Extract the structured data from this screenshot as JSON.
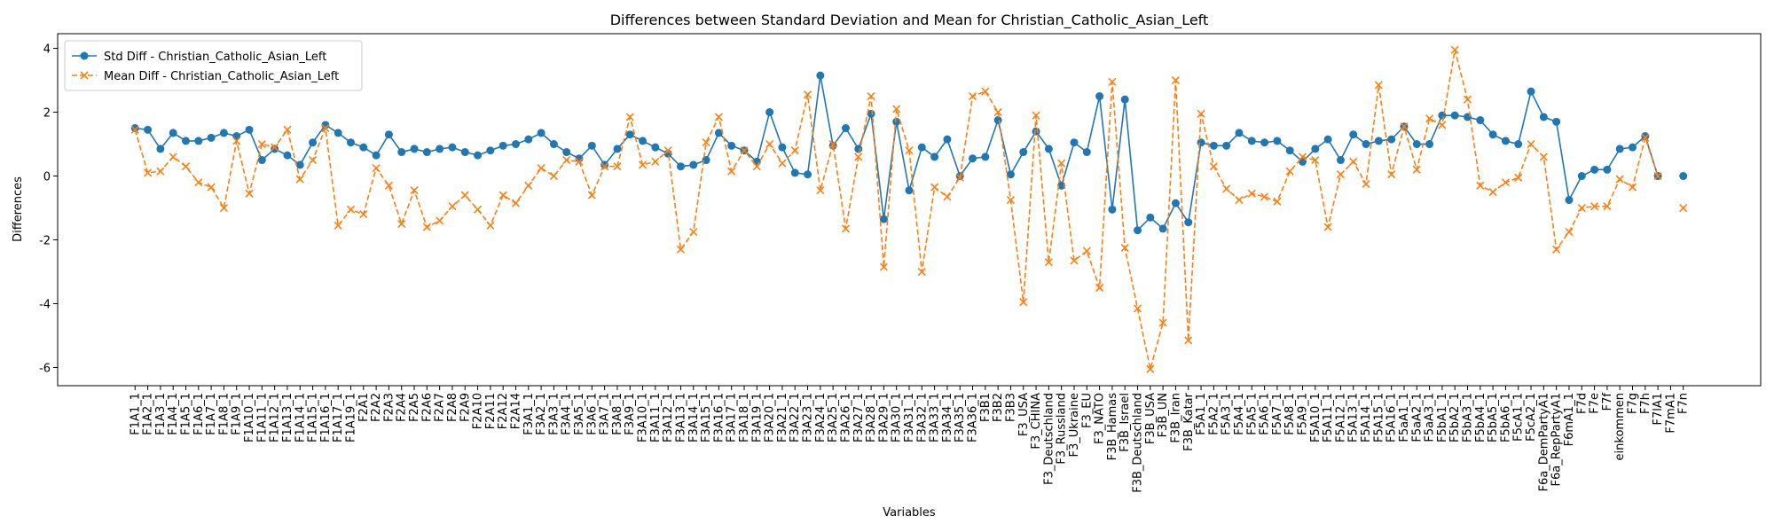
{
  "chart_data": {
    "type": "line",
    "title": "Differences between Standard Deviation and Mean for Christian_Catholic_Asian_Left",
    "x_label": "Variables",
    "y_label": "Differences",
    "categories": [
      "F1A1_1",
      "F1A2_1",
      "F1A3_1",
      "F1A4_1",
      "F1A5_1",
      "F1A6_1",
      "F1A7_1",
      "F1A8_1",
      "F1A9_1",
      "F1A10_1",
      "F1A11_1",
      "F1A12_1",
      "F1A13_1",
      "F1A14_1",
      "F1A15_1",
      "F1A16_1",
      "F1A17_1",
      "F1A19_1",
      "F2A1",
      "F2A2",
      "F2A3",
      "F2A4",
      "F2A5",
      "F2A6",
      "F2A7",
      "F2A8",
      "F2A9",
      "F2A10",
      "F2A11",
      "F2A12",
      "F2A14",
      "F3A1_1",
      "F3A2_1",
      "F3A3_1",
      "F3A4_1",
      "F3A5_1",
      "F3A6_1",
      "F3A7_1",
      "F3A8_1",
      "F3A9_1",
      "F3A10_1",
      "F3A11_1",
      "F3A12_1",
      "F3A13_1",
      "F3A14_1",
      "F3A15_1",
      "F3A16_1",
      "F3A17_1",
      "F3A18_1",
      "F3A19_1",
      "F3A20_1",
      "F3A21_1",
      "F3A22_1",
      "F3A23_1",
      "F3A24_1",
      "F3A25_1",
      "F3A26_1",
      "F3A27_1",
      "F3A28_1",
      "F3A29_1",
      "F3A30_1",
      "F3A31_1",
      "F3A32_1",
      "F3A33_1",
      "F3A34_1",
      "F3A35_1",
      "F3A36_1",
      "F3B1",
      "F3B2",
      "F3B3",
      "F3_USA",
      "F3_CHINA",
      "F3_Deutschland",
      "F3_Russland",
      "F3_Ukraine",
      "F3_EU",
      "F3_NATO",
      "F3B_Hamas",
      "F3B_Israel",
      "F3B_Deutschland",
      "F3B_USA",
      "F3B_UN",
      "F3B_Iran",
      "F3B_Katar",
      "F5A1_1",
      "F5A2_1",
      "F5A3_1",
      "F5A4_1",
      "F5A5_1",
      "F5A6_1",
      "F5A7_1",
      "F5A8_1",
      "F5A9_1",
      "F5A10_1",
      "F5A11_1",
      "F5A12_1",
      "F5A13_1",
      "F5A14_1",
      "F5A15_1",
      "F5A16_1",
      "F5aA1_1",
      "F5aA2_1",
      "F5aA3_1",
      "F5bA1_1",
      "F5bA2_1",
      "F5bA3_1",
      "F5bA4_1",
      "F5bA5_1",
      "F5bA6_1",
      "F5cA1_1",
      "F5cA2_1",
      "F6a_DemPartyA1",
      "F6a_RepPartyA1",
      "F6mA1_1",
      "F7d",
      "F7e",
      "F7f",
      "einkommen",
      "F7g",
      "F7h",
      "F7lA1",
      "F7mA1",
      "F7n"
    ],
    "series": [
      {
        "name": "Std Diff - Christian_Catholic_Asian_Left",
        "color": "#1f77b4",
        "marker": "o",
        "linestyle": "solid",
        "values": [
          1.5,
          1.45,
          0.85,
          1.35,
          1.1,
          1.1,
          1.2,
          1.35,
          1.25,
          1.45,
          0.5,
          0.85,
          0.65,
          0.35,
          1.05,
          1.6,
          1.35,
          1.05,
          0.9,
          0.65,
          1.3,
          0.75,
          0.85,
          0.75,
          0.85,
          0.9,
          0.75,
          0.65,
          0.8,
          0.95,
          1.0,
          1.15,
          1.35,
          1.0,
          0.75,
          0.55,
          0.95,
          0.35,
          0.85,
          1.3,
          1.1,
          0.9,
          0.7,
          0.3,
          0.35,
          0.5,
          1.35,
          0.95,
          0.8,
          0.45,
          2.0,
          0.9,
          0.1,
          0.05,
          3.15,
          0.95,
          1.5,
          0.85,
          1.95,
          -1.35,
          1.7,
          -0.45,
          0.9,
          0.6,
          1.15,
          0.0,
          0.55,
          0.6,
          1.75,
          0.05,
          0.75,
          1.4,
          0.85,
          -0.3,
          1.05,
          0.75,
          2.5,
          -1.05,
          2.4,
          -1.7,
          -1.3,
          -1.65,
          -0.85,
          -1.45,
          1.05,
          0.95,
          0.95,
          1.35,
          1.1,
          1.05,
          1.1,
          0.8,
          0.45,
          0.85,
          1.15,
          0.5,
          1.3,
          1.0,
          1.1,
          1.15,
          1.55,
          1.0,
          1.0,
          1.9,
          1.9,
          1.85,
          1.75,
          1.3,
          1.1,
          1.0,
          2.65,
          1.85,
          1.7,
          -0.75,
          0.0,
          0.2,
          0.2,
          0.85,
          0.9,
          1.25,
          0.0,
          null,
          0.0
        ]
      },
      {
        "name": "Mean Diff - Christian_Catholic_Asian_Left",
        "color": "#ff7f0e",
        "marker": "x",
        "linestyle": "dashed",
        "values": [
          1.45,
          0.1,
          0.15,
          0.6,
          0.3,
          -0.2,
          -0.35,
          -1.0,
          1.1,
          -0.55,
          1.0,
          0.9,
          1.45,
          -0.1,
          0.5,
          1.5,
          -1.55,
          -1.05,
          -1.2,
          0.25,
          -0.3,
          -1.5,
          -0.45,
          -1.6,
          -1.4,
          -0.95,
          -0.6,
          -1.05,
          -1.55,
          -0.6,
          -0.85,
          -0.3,
          0.25,
          0.0,
          0.5,
          0.45,
          -0.6,
          0.3,
          0.3,
          1.85,
          0.35,
          0.45,
          0.8,
          -2.3,
          -1.75,
          1.05,
          1.85,
          0.15,
          0.8,
          0.3,
          1.0,
          0.4,
          0.8,
          2.55,
          -0.45,
          1.0,
          -1.65,
          0.6,
          2.5,
          -2.85,
          2.1,
          0.8,
          -3.0,
          -0.35,
          -0.65,
          -0.05,
          2.5,
          2.65,
          2.0,
          -0.75,
          -3.95,
          1.9,
          -2.7,
          0.4,
          -2.65,
          -2.35,
          -3.5,
          2.95,
          -2.25,
          -4.15,
          -6.05,
          -4.6,
          3.0,
          -5.15,
          1.95,
          0.3,
          -0.4,
          -0.75,
          -0.55,
          -0.65,
          -0.8,
          0.15,
          0.6,
          0.5,
          -1.6,
          0.05,
          0.45,
          -0.25,
          2.85,
          0.05,
          1.55,
          0.2,
          1.8,
          1.6,
          3.95,
          2.4,
          -0.3,
          -0.5,
          -0.2,
          -0.05,
          1.0,
          0.6,
          -2.3,
          -1.75,
          -1.0,
          -0.95,
          -0.95,
          -0.1,
          -0.35,
          1.2,
          0.0,
          null,
          -1.0
        ]
      }
    ],
    "ylim": [
      -6.57,
      4.46
    ],
    "yticks": [
      -6,
      -4,
      -2,
      0,
      2,
      4
    ],
    "legend": "upper left",
    "grid": false
  }
}
